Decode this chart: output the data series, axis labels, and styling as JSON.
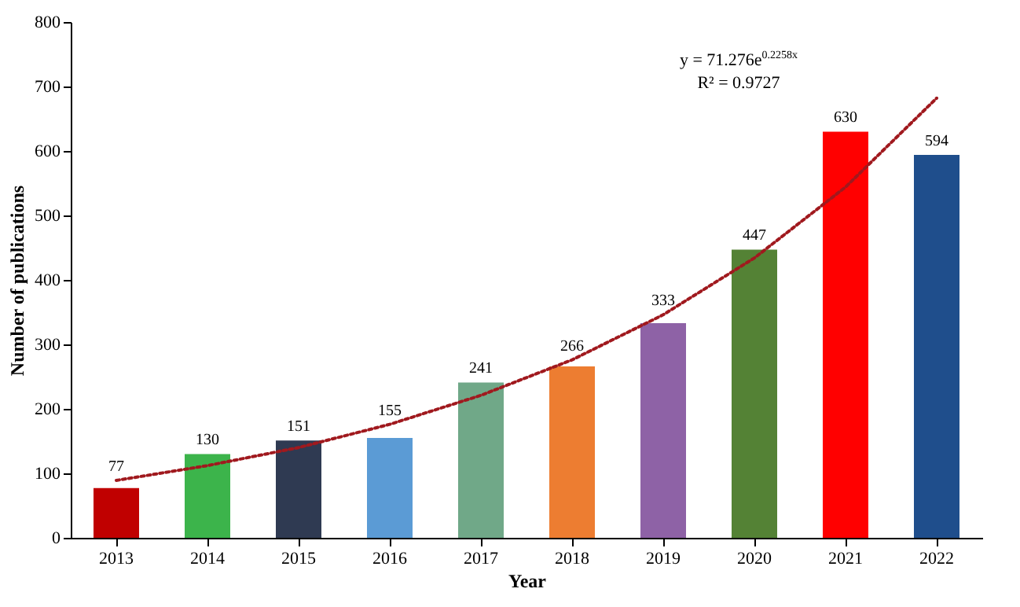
{
  "chart_data": {
    "type": "bar",
    "xlabel": "Year",
    "ylabel": "Number of publications",
    "categories": [
      "2013",
      "2014",
      "2015",
      "2016",
      "2017",
      "2018",
      "2019",
      "2020",
      "2021",
      "2022"
    ],
    "values": [
      77,
      130,
      151,
      155,
      241,
      266,
      333,
      447,
      630,
      594
    ],
    "colors": [
      "#c00000",
      "#3cb44b",
      "#2f3a52",
      "#5b9bd5",
      "#70a888",
      "#ed7d31",
      "#8e62a6",
      "#548235",
      "#ff0000",
      "#1f4e8c"
    ],
    "series": [
      {
        "type": "line",
        "color": "#a0191e",
        "line_style": "dotted",
        "marker": "none",
        "value_labels": [
          null,
          null,
          null,
          null,
          null,
          null,
          null,
          null,
          null,
          null
        ],
        "values": [
          89,
          112,
          140,
          176,
          221,
          276,
          346,
          434,
          544,
          682
        ]
      }
    ],
    "ylim": [
      0,
      800
    ],
    "yticks": [
      0,
      100,
      200,
      300,
      400,
      500,
      600,
      700,
      800
    ],
    "grid": false,
    "legend": false,
    "data_labels": true,
    "annotations": [
      "y = 71.276e$^{0.2258x}$",
      "R² = 0.9727"
    ]
  }
}
